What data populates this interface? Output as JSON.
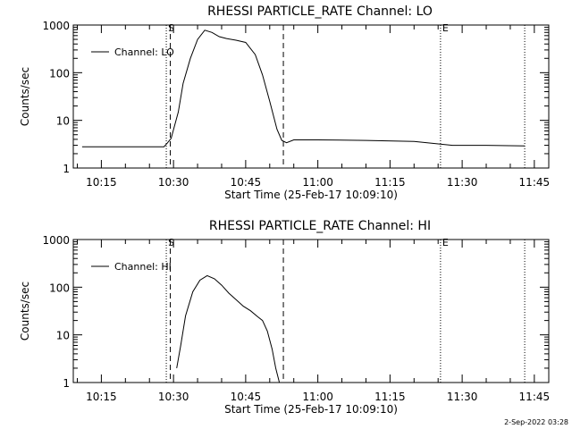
{
  "chart_data": [
    {
      "type": "line",
      "title": "RHESSI PARTICLE_RATE Channel: LO",
      "xlabel": "Start Time (25-Feb-17 10:09:10)",
      "ylabel": "Counts/sec",
      "y_scale": "log",
      "ylim": [
        1,
        1000
      ],
      "xlim": [
        "10:09:10",
        "11:48:00"
      ],
      "x_ticks": [
        "10:15",
        "10:30",
        "10:45",
        "11:00",
        "11:15",
        "11:30",
        "11:45"
      ],
      "y_ticks": [
        "1",
        "10",
        "100",
        "1000"
      ],
      "legend": {
        "position": "top-left",
        "label": "Channel: LO"
      },
      "markers": [
        {
          "label": "S",
          "time": "10:28:30",
          "style": "dotted"
        },
        {
          "time": "10:29:20",
          "style": "dashed"
        },
        {
          "time": "10:52:50",
          "style": "dashed"
        },
        {
          "label": "E",
          "time": "11:25:30",
          "style": "dotted"
        },
        {
          "time": "11:43:00",
          "style": "dotted"
        }
      ],
      "series": [
        {
          "x": [
            "10:11:00",
            "10:28:00",
            "10:28:40",
            "10:29:30",
            "10:31:00",
            "10:32:00",
            "10:33:30",
            "10:35:00",
            "10:36:30",
            "10:38:00",
            "10:39:30",
            "10:41:00",
            "10:43:00",
            "10:45:00",
            "10:47:00",
            "10:48:30",
            "10:50:00",
            "10:51:30",
            "10:52:30",
            "10:53:30",
            "10:55:00",
            "11:00:00",
            "11:10:00",
            "11:20:00",
            "11:28:00",
            "11:35:00",
            "11:43:00"
          ],
          "y": [
            2.8,
            2.8,
            3.3,
            4.2,
            15,
            60,
            200,
            500,
            780,
            700,
            570,
            520,
            480,
            430,
            240,
            90,
            25,
            6.5,
            3.8,
            3.4,
            3.9,
            3.9,
            3.8,
            3.6,
            3.0,
            3.0,
            2.9
          ]
        }
      ]
    },
    {
      "type": "line",
      "title": "RHESSI PARTICLE_RATE Channel: HI",
      "xlabel": "Start Time (25-Feb-17 10:09:10)",
      "ylabel": "Counts/sec",
      "y_scale": "log",
      "ylim": [
        1,
        1000
      ],
      "xlim": [
        "10:09:10",
        "11:48:00"
      ],
      "x_ticks": [
        "10:15",
        "10:30",
        "10:45",
        "11:00",
        "11:15",
        "11:30",
        "11:45"
      ],
      "y_ticks": [
        "1",
        "10",
        "100",
        "1000"
      ],
      "legend": {
        "position": "top-left",
        "label": "Channel: HI"
      },
      "markers": [
        {
          "label": "S",
          "time": "10:28:30",
          "style": "dotted"
        },
        {
          "time": "10:29:20",
          "style": "dashed"
        },
        {
          "time": "10:52:50",
          "style": "dashed"
        },
        {
          "label": "E",
          "time": "11:25:30",
          "style": "dotted"
        },
        {
          "time": "11:43:00",
          "style": "dotted"
        }
      ],
      "series": [
        {
          "x": [
            "10:30:40",
            "10:31:30",
            "10:32:30",
            "10:34:00",
            "10:35:30",
            "10:37:00",
            "10:38:30",
            "10:40:00",
            "10:41:30",
            "10:43:00",
            "10:44:30",
            "10:46:00",
            "10:47:30",
            "10:48:30",
            "10:49:30",
            "10:50:30",
            "10:51:15",
            "10:52:00"
          ],
          "y": [
            2.0,
            6,
            25,
            80,
            140,
            175,
            150,
            110,
            75,
            55,
            40,
            32,
            24,
            20,
            12,
            5,
            2.0,
            1.0
          ]
        }
      ]
    }
  ],
  "footer": {
    "timestamp": "2-Sep-2022 03:28"
  }
}
